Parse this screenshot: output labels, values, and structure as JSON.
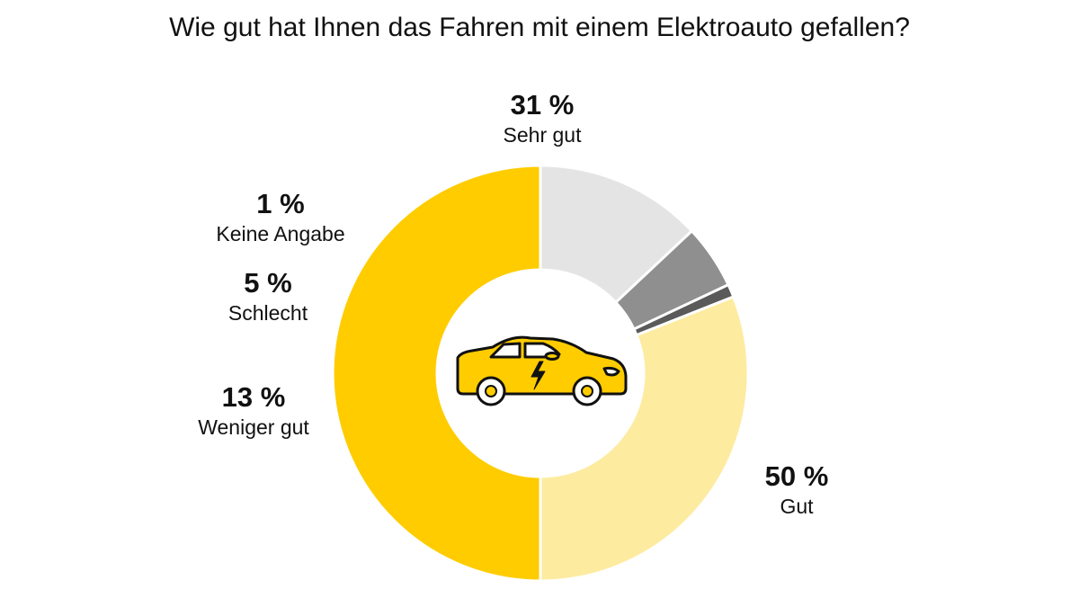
{
  "chart_data": {
    "type": "pie",
    "variant": "donut",
    "title": "Wie gut hat Ihnen das Fahren mit einem Elektroauto gefallen?",
    "unit": "%",
    "slices": [
      {
        "label": "Gut",
        "value": 50,
        "display": "50 %",
        "color": "#FFCC00"
      },
      {
        "label": "Weniger gut",
        "value": 13,
        "display": "13 %",
        "color": "#E4E4E4"
      },
      {
        "label": "Schlecht",
        "value": 5,
        "display": "5 %",
        "color": "#8F8F8F"
      },
      {
        "label": "Keine Angabe",
        "value": 1,
        "display": "1 %",
        "color": "#5A5A5A"
      },
      {
        "label": "Sehr gut",
        "value": 31,
        "display": "31 %",
        "color": "#FDEBA0"
      }
    ],
    "center_icon": "electric-car-icon",
    "legend": "none"
  }
}
